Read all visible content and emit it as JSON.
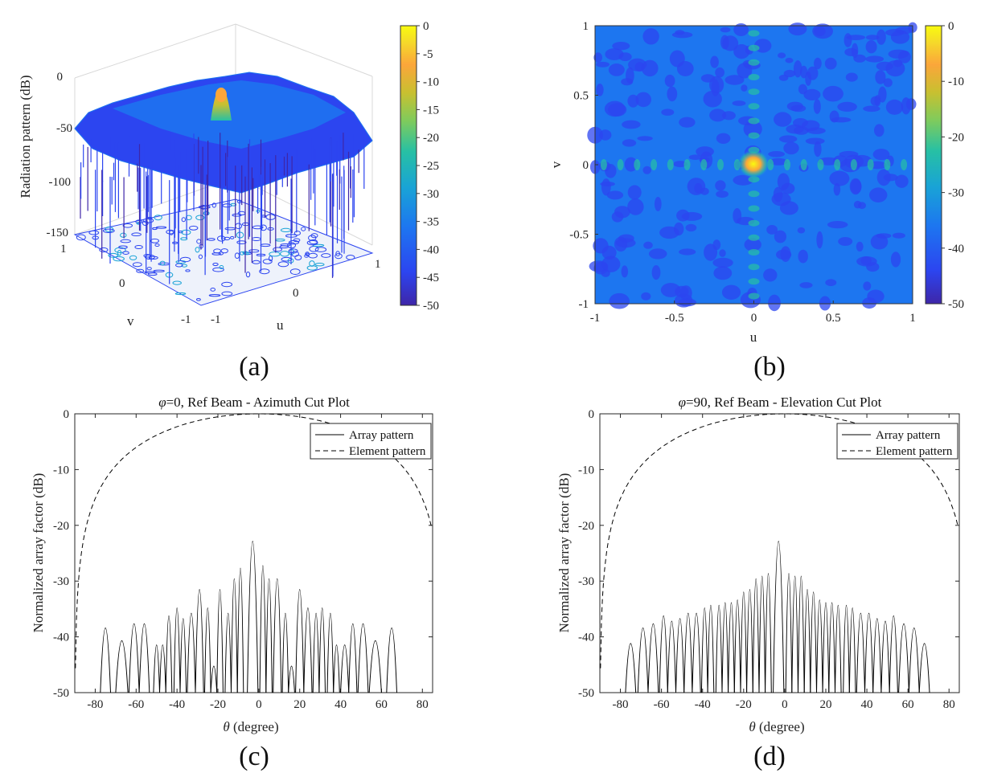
{
  "colors": {
    "parula": [
      "#3e26a8",
      "#2c45f0",
      "#1d76f0",
      "#19a3d6",
      "#27c0a4",
      "#7fcb5c",
      "#c8c030",
      "#fba63a",
      "#f5d92a",
      "#f9fb0e"
    ],
    "line": "#000000",
    "text": "#222222"
  },
  "captions": {
    "a": "(a)",
    "b": "(b)",
    "c": "(c)",
    "d": "(d)"
  },
  "chart_data": [
    {
      "id": "a",
      "type": "surface",
      "zlabel": "Radiation pattern (dB)",
      "xlabel": "u",
      "ylabel": "v",
      "z_ticks": [
        "0",
        "-50",
        "-100",
        "-150"
      ],
      "u_ticks": [
        "-1",
        "0",
        "1"
      ],
      "v_ticks": [
        "1",
        "0",
        "-1"
      ],
      "zlim": [
        -150,
        0
      ],
      "peak": {
        "u": 0,
        "v": 0,
        "value": 0
      },
      "colorbar": {
        "range": [
          -50,
          0
        ],
        "ticks": [
          "0",
          "-5",
          "-10",
          "-15",
          "-20",
          "-25",
          "-30",
          "-35",
          "-40",
          "-45",
          "-50"
        ]
      }
    },
    {
      "id": "b",
      "type": "heatmap",
      "xlabel": "u",
      "ylabel": "v",
      "x_ticks": [
        "-1",
        "-0.5",
        "0",
        "0.5",
        "1"
      ],
      "y_ticks": [
        "1",
        "0.5",
        "0",
        "-0.5",
        "-1"
      ],
      "xlim": [
        -1,
        1
      ],
      "ylim": [
        -1,
        1
      ],
      "peak": {
        "u": 0,
        "v": 0,
        "value": 0
      },
      "colorbar": {
        "range": [
          -50,
          0
        ],
        "ticks": [
          "0",
          "-10",
          "-20",
          "-30",
          "-40",
          "-50"
        ]
      }
    },
    {
      "id": "c",
      "type": "line",
      "title_symbol": "φ",
      "title": "=0, Ref Beam - Azimuth Cut Plot",
      "xlabel_symbol": "θ",
      "xlabel": " (degree)",
      "ylabel": "Normalized array factor (dB)",
      "x_ticks": [
        "-80",
        "-60",
        "-40",
        "-20",
        "0",
        "20",
        "40",
        "60",
        "80"
      ],
      "y_ticks": [
        "0",
        "-10",
        "-20",
        "-30",
        "-40",
        "-50"
      ],
      "xlim": [
        -90,
        85
      ],
      "ylim": [
        -50,
        0
      ],
      "legend": [
        "Array pattern",
        "Element pattern"
      ],
      "series": [
        {
          "name": "Array pattern",
          "style": "solid",
          "mainlobe_deg": -3,
          "sidelobes": [
            [
              -75,
              -37.8
            ],
            [
              -67,
              -40.2
            ],
            [
              -61,
              -37
            ],
            [
              -56,
              -37
            ],
            [
              -50,
              -41
            ],
            [
              -47,
              -41
            ],
            [
              -44,
              -35.5
            ],
            [
              -40,
              -34
            ],
            [
              -37,
              -36
            ],
            [
              -33,
              -35
            ],
            [
              -29,
              -30.5
            ],
            [
              -25,
              -34
            ],
            [
              -22,
              -45
            ],
            [
              -19,
              -30.5
            ],
            [
              -15,
              -35
            ],
            [
              -12,
              -28.5
            ],
            [
              -9,
              -26.5
            ],
            [
              2,
              -26
            ],
            [
              5,
              -28.5
            ],
            [
              9,
              -28.5
            ],
            [
              13,
              -35
            ],
            [
              16,
              -45
            ],
            [
              20,
              -30.5
            ],
            [
              24,
              -34
            ],
            [
              28,
              -35
            ],
            [
              31,
              -34
            ],
            [
              35,
              -35
            ],
            [
              38,
              -41
            ],
            [
              42,
              -41
            ],
            [
              46,
              -37
            ],
            [
              51,
              -37
            ],
            [
              57,
              -40.2
            ],
            [
              65,
              -37.8
            ]
          ]
        },
        {
          "name": "Element pattern",
          "style": "dashed",
          "peak_deg": 0,
          "cutoff_deg": [
            -90,
            85
          ]
        }
      ]
    },
    {
      "id": "d",
      "type": "line",
      "title_symbol": "φ",
      "title": "=90, Ref Beam - Elevation Cut Plot",
      "xlabel_symbol": "θ",
      "xlabel": " (degree)",
      "ylabel": "Normalized array factor (dB)",
      "x_ticks": [
        "-80",
        "-60",
        "-40",
        "-20",
        "0",
        "20",
        "40",
        "60",
        "80"
      ],
      "y_ticks": [
        "0",
        "-10",
        "-20",
        "-30",
        "-40",
        "-50"
      ],
      "xlim": [
        -90,
        85
      ],
      "ylim": [
        -50,
        0
      ],
      "legend": [
        "Array pattern",
        "Element pattern"
      ],
      "series": [
        {
          "name": "Array pattern",
          "style": "solid",
          "mainlobe_deg": -3,
          "sidelobes": [
            [
              -75,
              -40.7
            ],
            [
              -69,
              -37.8
            ],
            [
              -64,
              -37
            ],
            [
              -59,
              -35.5
            ],
            [
              -55,
              -36.5
            ],
            [
              -51,
              -36
            ],
            [
              -47,
              -35
            ],
            [
              -43,
              -35
            ],
            [
              -39,
              -34
            ],
            [
              -36,
              -33.5
            ],
            [
              -32,
              -33.5
            ],
            [
              -29,
              -33
            ],
            [
              -26,
              -33
            ],
            [
              -23,
              -32.5
            ],
            [
              -20,
              -31
            ],
            [
              -17,
              -30.5
            ],
            [
              -14,
              -28.5
            ],
            [
              -11,
              -28
            ],
            [
              -8,
              -27.5
            ],
            [
              2,
              -27.5
            ],
            [
              5,
              -28
            ],
            [
              8,
              -28
            ],
            [
              11,
              -30.5
            ],
            [
              14,
              -31
            ],
            [
              17,
              -32.5
            ],
            [
              20,
              -33
            ],
            [
              23,
              -33
            ],
            [
              26,
              -33.5
            ],
            [
              30,
              -33.5
            ],
            [
              33,
              -34
            ],
            [
              37,
              -35
            ],
            [
              41,
              -35
            ],
            [
              45,
              -36
            ],
            [
              49,
              -36.5
            ],
            [
              53,
              -35.5
            ],
            [
              58,
              -37
            ],
            [
              63,
              -37.8
            ],
            [
              68,
              -40.7
            ]
          ]
        },
        {
          "name": "Element pattern",
          "style": "dashed",
          "peak_deg": 0,
          "cutoff_deg": [
            -90,
            85
          ]
        }
      ]
    }
  ]
}
